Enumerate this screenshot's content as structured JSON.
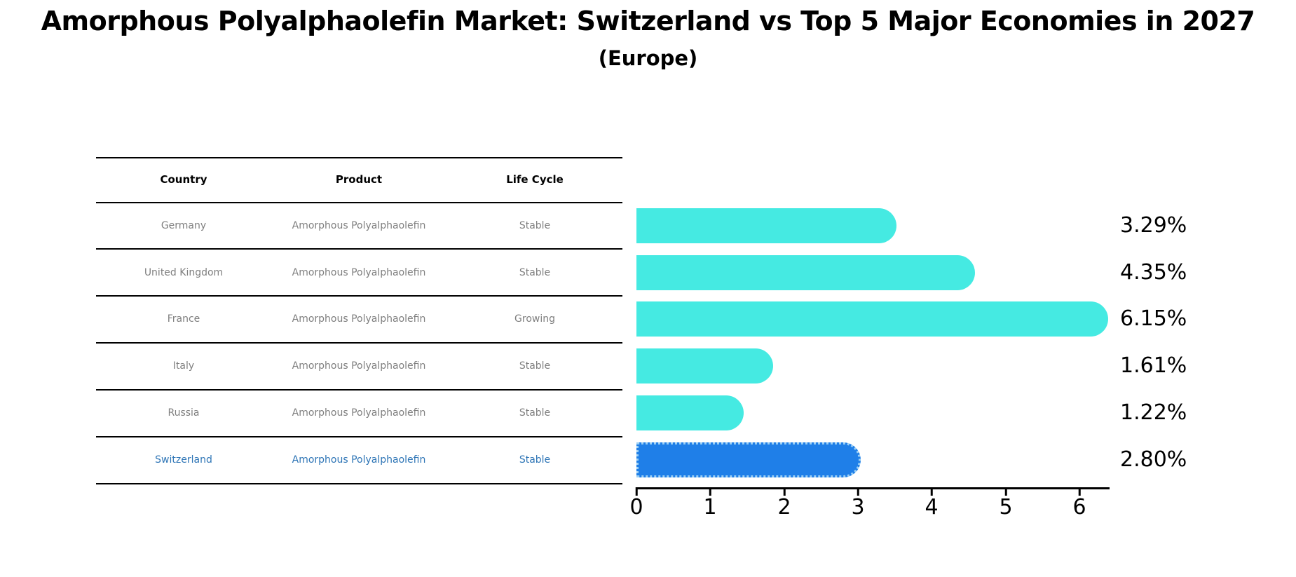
{
  "title": "Amorphous Polyalphaolefin Market: Switzerland vs Top 5 Major Economies in 2027",
  "subtitle": "(Europe)",
  "table": {
    "headers": [
      "Country",
      "Product",
      "Life Cycle"
    ],
    "rows": [
      {
        "country": "Germany",
        "product": "Amorphous Polyalphaolefin",
        "life_cycle": "Stable",
        "highlight": false
      },
      {
        "country": "United Kingdom",
        "product": "Amorphous Polyalphaolefin",
        "life_cycle": "Stable",
        "highlight": false
      },
      {
        "country": "France",
        "product": "Amorphous Polyalphaolefin",
        "life_cycle": "Growing",
        "highlight": false
      },
      {
        "country": "Italy",
        "product": "Amorphous Polyalphaolefin",
        "life_cycle": "Stable",
        "highlight": false
      },
      {
        "country": "Russia",
        "product": "Amorphous Polyalphaolefin",
        "life_cycle": "Stable",
        "highlight": false
      },
      {
        "country": "Switzerland",
        "product": "Amorphous Polyalphaolefin",
        "life_cycle": "Stable",
        "highlight": true
      }
    ]
  },
  "chart_data": {
    "type": "bar",
    "orientation": "horizontal",
    "title": "Amorphous Polyalphaolefin Market: Switzerland vs Top 5 Major Economies in 2027",
    "subtitle": "(Europe)",
    "categories": [
      "Germany",
      "United Kingdom",
      "France",
      "Italy",
      "Russia",
      "Switzerland"
    ],
    "values": [
      3.29,
      4.35,
      6.15,
      1.61,
      1.22,
      2.8
    ],
    "value_labels": [
      "3.29%",
      "4.35%",
      "6.15%",
      "1.61%",
      "1.22%",
      "2.80%"
    ],
    "x_ticks": [
      0,
      1,
      2,
      3,
      4,
      5,
      6
    ],
    "xlim": [
      0,
      6.41
    ],
    "grid": false,
    "legend": "none",
    "bar_color": "#45eae2",
    "highlight_index": 5,
    "highlight_color": "#1f7fe8",
    "highlight_edge_color": "#9cd0f5",
    "highlight_text_color": "#2e75b6",
    "row_text_color": "#7f7f7f",
    "axis_color": "#000000"
  }
}
